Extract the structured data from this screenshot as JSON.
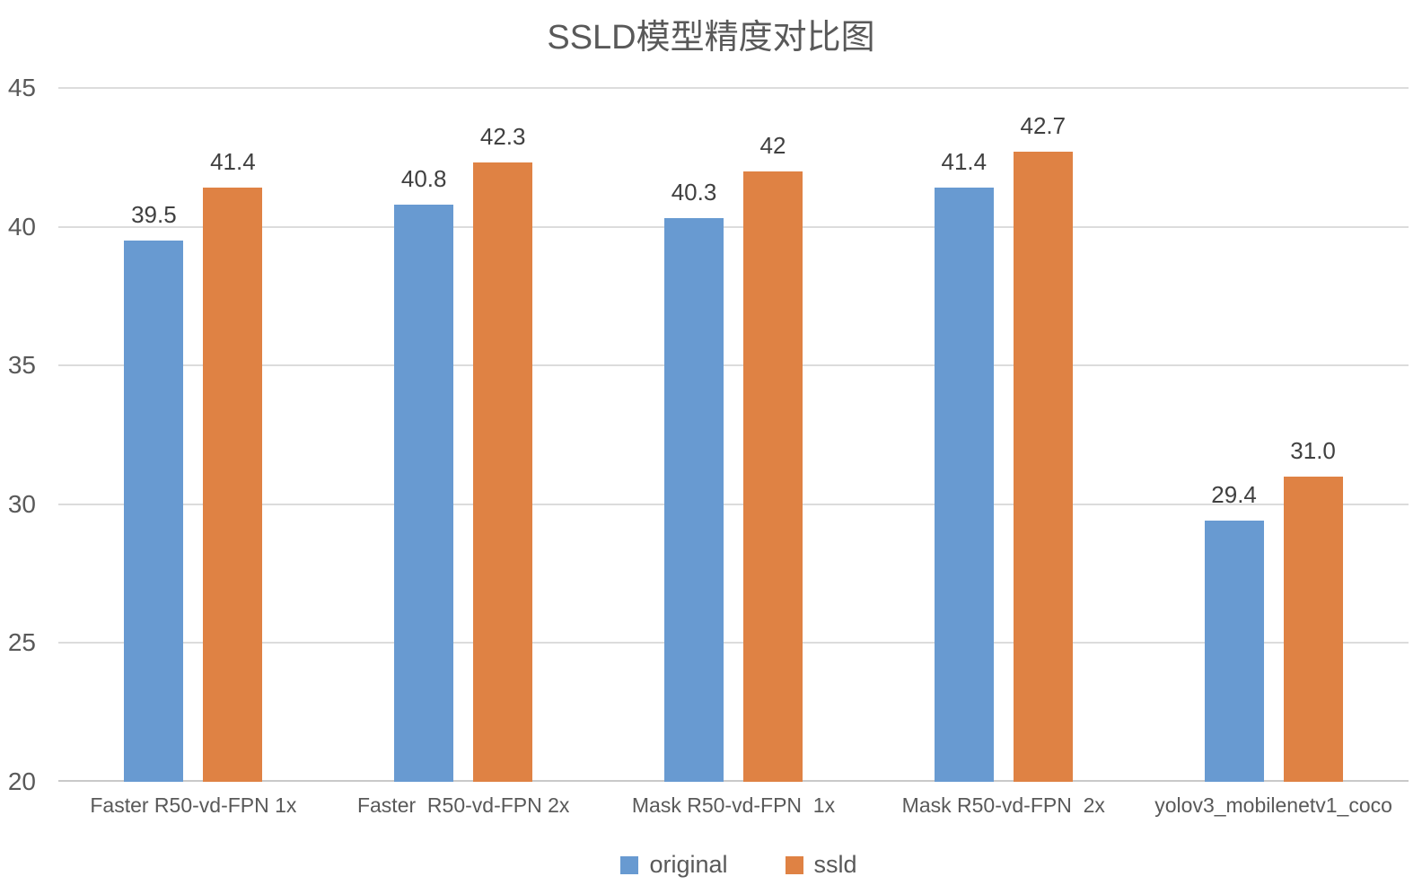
{
  "chart_data": {
    "type": "bar",
    "title": "SSLD模型精度对比图",
    "categories": [
      "Faster R50-vd-FPN 1x",
      "Faster  R50-vd-FPN 2x",
      "Mask R50-vd-FPN  1x",
      "Mask R50-vd-FPN  2x",
      "yolov3_mobilenetv1_coco"
    ],
    "series": [
      {
        "name": "original",
        "color": "#689AD1",
        "values": [
          39.5,
          40.8,
          40.3,
          41.4,
          29.4
        ],
        "value_labels": [
          "39.5",
          "40.8",
          "40.3",
          "41.4",
          "29.4"
        ]
      },
      {
        "name": "ssld",
        "color": "#DF8244",
        "values": [
          41.4,
          42.3,
          42.0,
          42.7,
          31.0
        ],
        "value_labels": [
          "41.4",
          "42.3",
          "42",
          "42.7",
          "31.0"
        ]
      }
    ],
    "xlabel": "",
    "ylabel": "",
    "ylim": [
      20,
      45
    ],
    "yticks": [
      20,
      25,
      30,
      35,
      40,
      45
    ],
    "grid": true,
    "legend_position": "bottom"
  },
  "style": {
    "background": "#FFFFFF",
    "text_color": "#595959",
    "value_label_color": "#404040",
    "gridline_color": "#DCDCDC",
    "axisline_color": "#C9C9C9"
  }
}
